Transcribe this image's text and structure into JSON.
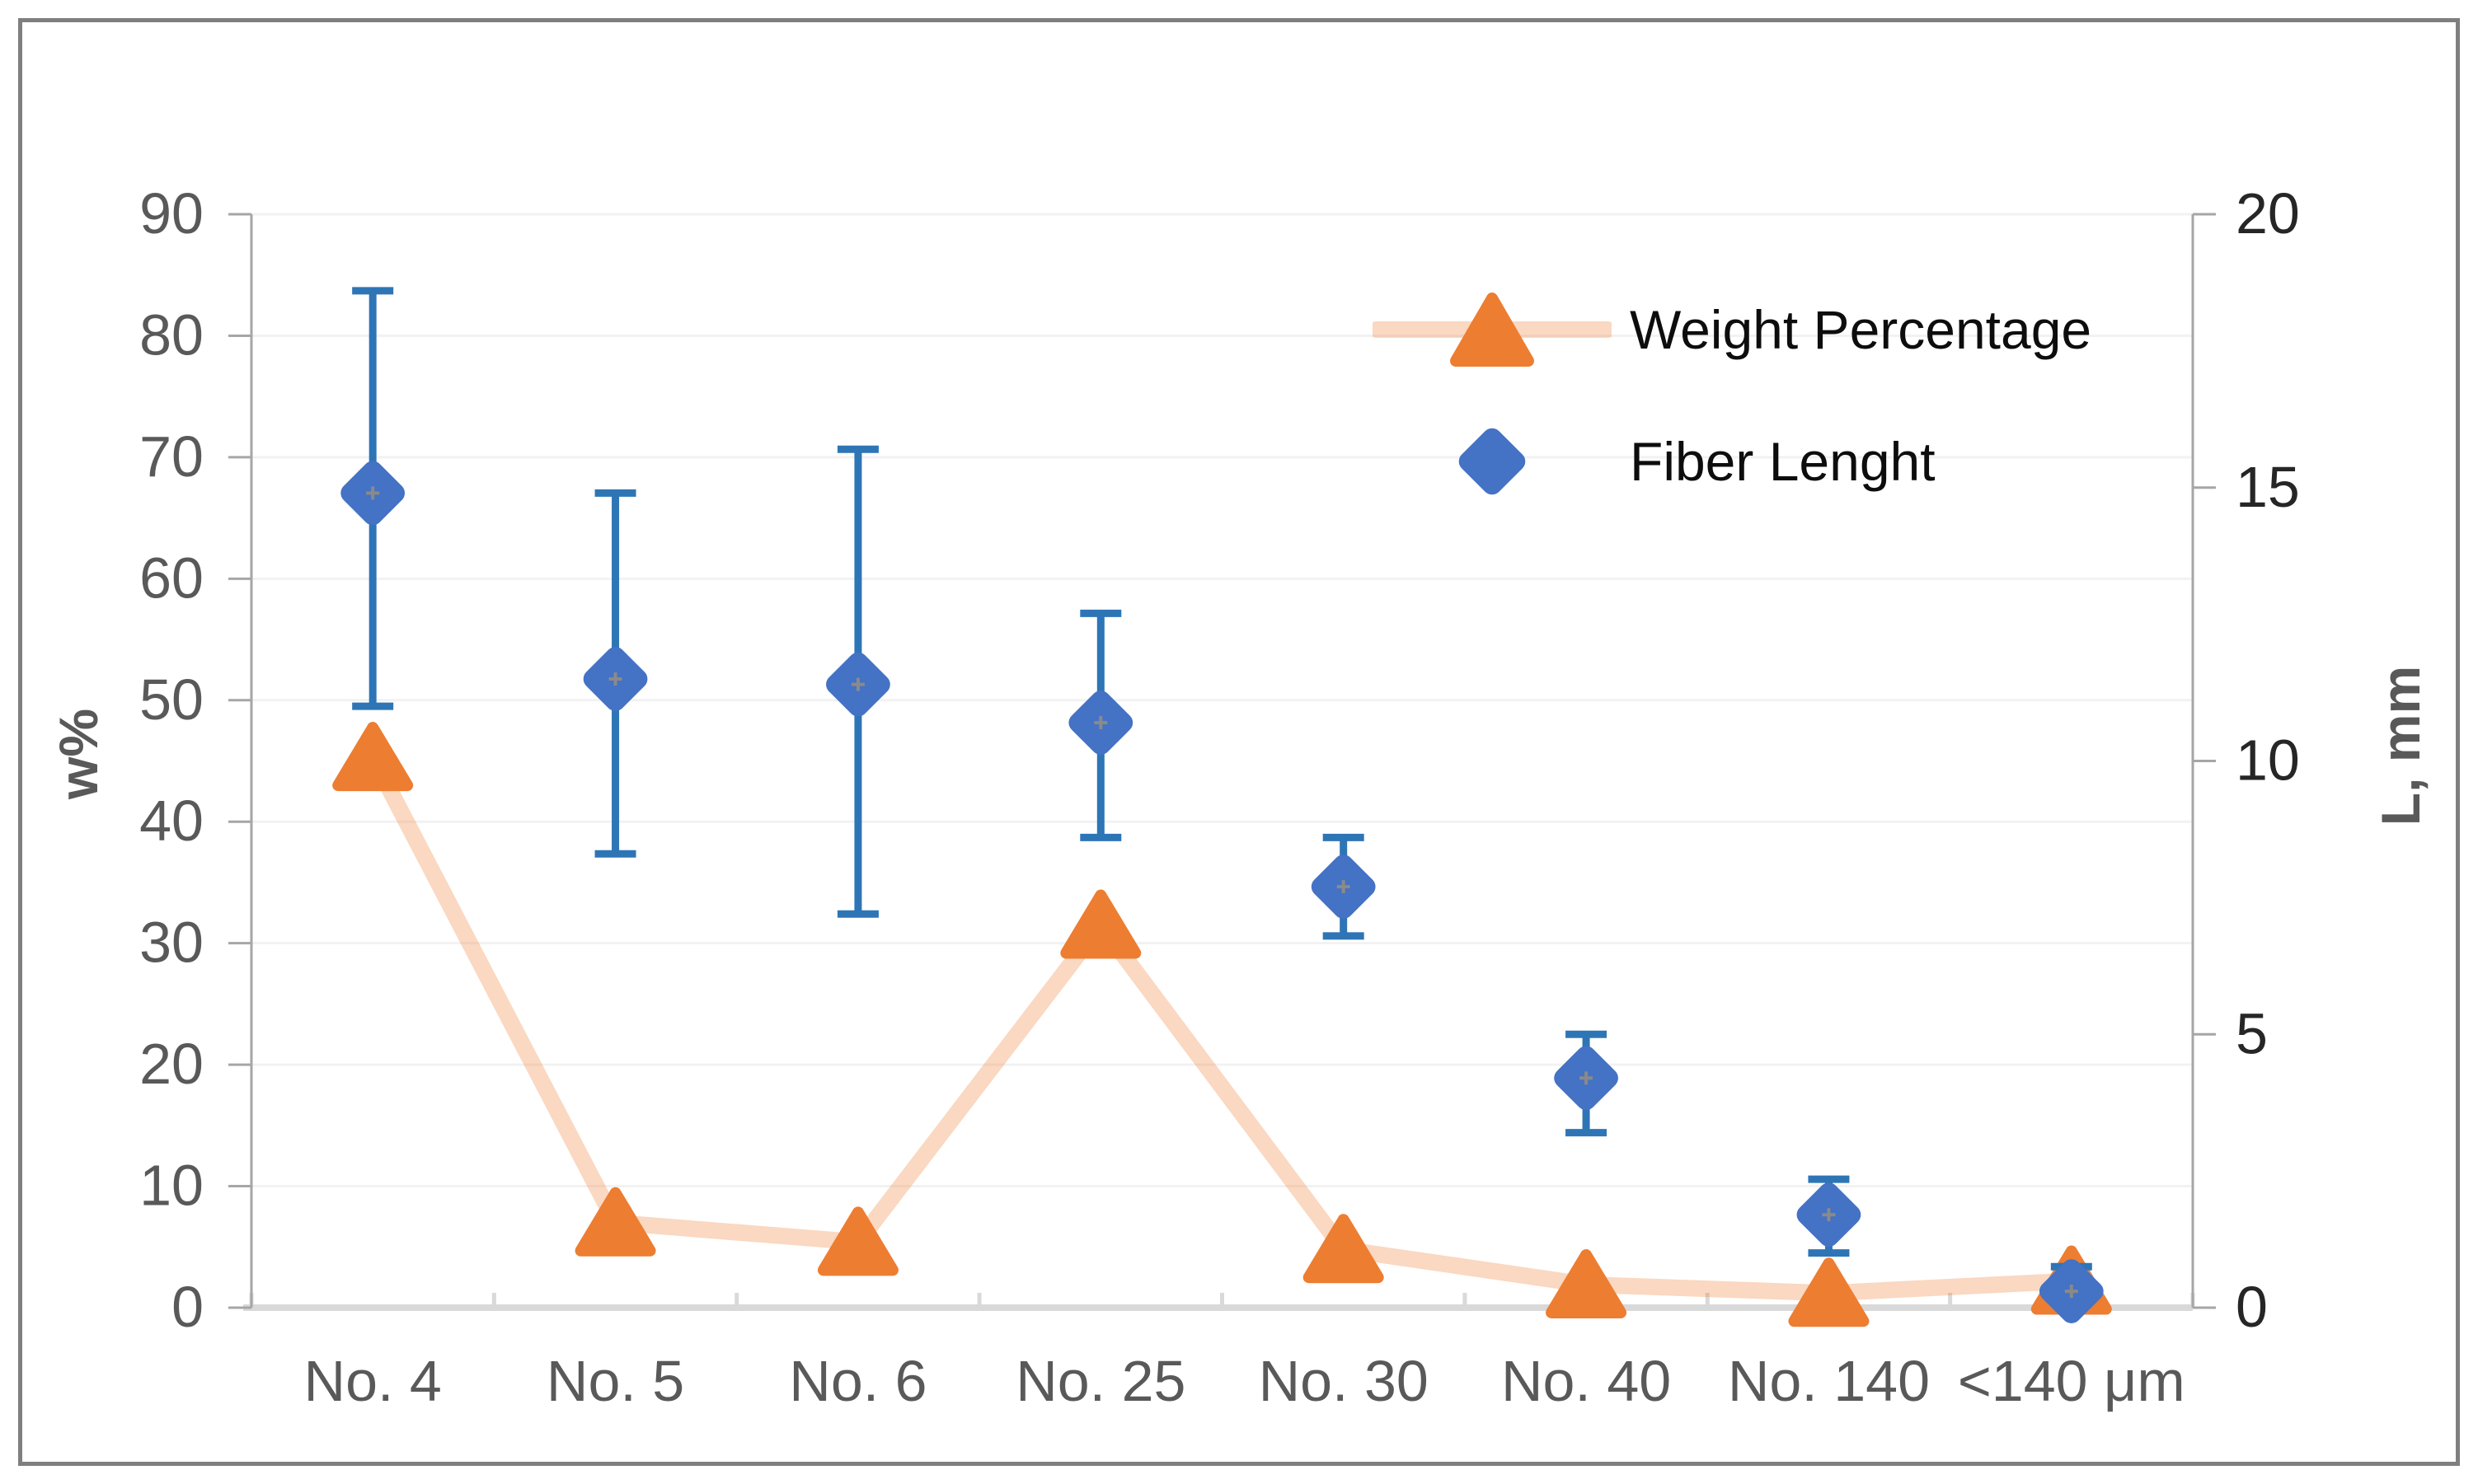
{
  "chart_data": {
    "type": "scatter",
    "title": "",
    "categories": [
      "No. 4",
      "No. 5",
      "No. 6",
      "No. 25",
      "No. 30",
      "No. 40",
      "No. 140",
      "<140 μm"
    ],
    "series": [
      {
        "name": "Weight Percentage",
        "axis": "left",
        "marker": "triangle",
        "has_line": true,
        "values": [
          45.3,
          7.0,
          5.4,
          31.5,
          4.8,
          1.9,
          1.2,
          2.2
        ]
      },
      {
        "name": "Fiber Lenght",
        "axis": "right",
        "marker": "diamond",
        "has_line": false,
        "values": [
          14.9,
          11.5,
          11.4,
          10.7,
          7.7,
          4.2,
          1.7,
          0.3
        ],
        "error_low": [
          11.0,
          8.3,
          7.2,
          8.6,
          6.8,
          3.2,
          1.0,
          0.0
        ],
        "error_high": [
          18.6,
          14.9,
          15.7,
          12.7,
          8.6,
          5.0,
          2.35,
          0.75
        ]
      }
    ],
    "y_left": {
      "title": "w%",
      "min": 0,
      "max": 90,
      "step": 10,
      "tick_labels": [
        "0",
        "10",
        "20",
        "30",
        "40",
        "50",
        "60",
        "70",
        "80",
        "90"
      ]
    },
    "y_right": {
      "title": "L, mm",
      "min": 0,
      "max": 20,
      "step": 5,
      "tick_labels": [
        "0",
        "5",
        "10",
        "15",
        "20"
      ]
    },
    "grid": true,
    "legend_position": "upper-right-inside"
  },
  "legend": {
    "items": [
      {
        "label": "Weight Percentage"
      },
      {
        "label": "Fiber Lenght"
      }
    ]
  },
  "colors": {
    "weight_marker": "#ED7D31",
    "weight_line_rgba": "rgba(237,125,49,0.30)",
    "fiber_marker": "#4472C4",
    "error_bar": "#2E75B6",
    "gridline": "#F2F2F2",
    "axis_line": "#A6A6A6",
    "x_axis_line": "#D9D9D9",
    "tick_label": "#595959",
    "right_tick_label": "#262626",
    "legend_text": "#0D0D0D",
    "border": "#7F7F7F",
    "marker_center_dot": "#8A8A8A"
  }
}
